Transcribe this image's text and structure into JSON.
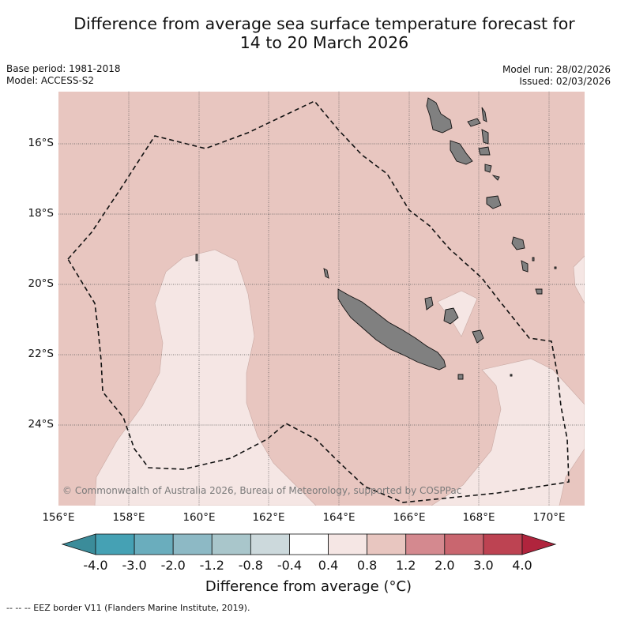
{
  "title_line1": "Difference from average sea surface temperature forecast for",
  "title_line2": "14 to 20 March 2026",
  "base_period": "Base period: 1981-2018",
  "model": "Model: ACCESS-S2",
  "model_run": "Model run: 28/02/2026",
  "issued": "Issued: 02/03/2026",
  "latitudes": [
    "16°S",
    "18°S",
    "20°S",
    "22°S",
    "24°S"
  ],
  "longitudes": [
    "156°E",
    "158°E",
    "160°E",
    "162°E",
    "164°E",
    "166°E",
    "168°E",
    "170°E"
  ],
  "copyright": "© Commonwealth of Australia 2026, Bureau of Meteorology, supported by COSPPac",
  "colorbar": {
    "title": "Difference from average (°C)",
    "tick_labels": [
      "-4.0",
      "-3.0",
      "-2.0",
      "-1.2",
      "-0.8",
      "-0.4",
      "0.4",
      "0.8",
      "1.2",
      "2.0",
      "3.0",
      "4.0"
    ],
    "colors": [
      "#3b8c9a",
      "#45a1b4",
      "#6aadbd",
      "#8db9c5",
      "#a9c6cb",
      "#ccd9dc",
      "#ffffff",
      "#f5e6e4",
      "#e8c6c0",
      "#d4898f",
      "#c9666f",
      "#bd4352",
      "#b0243d"
    ]
  },
  "legend_note": "--  --  -- EEZ border V11 (Flanders Marine Institute, 2019).",
  "map_colors": {
    "anomaly_0.8_1.2": "#e8c6c0",
    "anomaly_0.4_0.8": "#f5e6e4",
    "land": "#808080"
  }
}
